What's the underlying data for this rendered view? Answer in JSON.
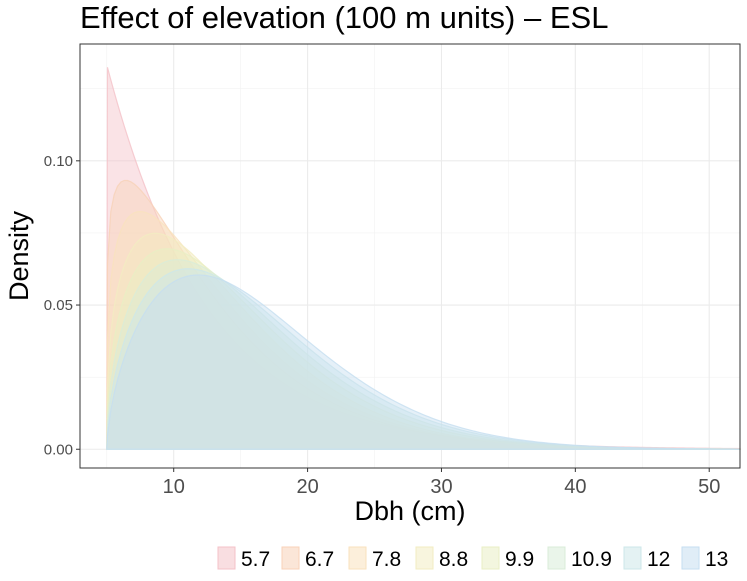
{
  "chart_data": {
    "type": "area",
    "title": "Effect of elevation (100 m units) – ESL",
    "xlabel": "Dbh (cm)",
    "ylabel": "Density",
    "xlim": [
      3,
      52.3
    ],
    "ylim": [
      -0.0065,
      0.1405
    ],
    "xticks": [
      10,
      20,
      30,
      40,
      50
    ],
    "yticks": [
      0.0,
      0.05,
      0.1
    ],
    "ytick_labels": [
      "0.00",
      "0.05",
      "0.10"
    ],
    "grid": true,
    "legend_position": "bottom",
    "x_min_value": 5,
    "series": [
      {
        "name": "5.7",
        "color": "#f4c2c8",
        "shape": 1.0,
        "scale": 7.5
      },
      {
        "name": "6.7",
        "color": "#f8d2b8",
        "shape": 1.15,
        "scale": 8.3
      },
      {
        "name": "7.8",
        "color": "#f9e2be",
        "shape": 1.25,
        "scale": 9.0
      },
      {
        "name": "8.8",
        "color": "#f2ecc2",
        "shape": 1.35,
        "scale": 9.8
      },
      {
        "name": "9.9",
        "color": "#e9efc4",
        "shape": 1.42,
        "scale": 10.6
      },
      {
        "name": "10.9",
        "color": "#d9ecd8",
        "shape": 1.48,
        "scale": 11.3
      },
      {
        "name": "12",
        "color": "#cde7ea",
        "shape": 1.54,
        "scale": 12.0
      },
      {
        "name": "13",
        "color": "#c6def0",
        "shape": 1.6,
        "scale": 12.6
      }
    ]
  }
}
